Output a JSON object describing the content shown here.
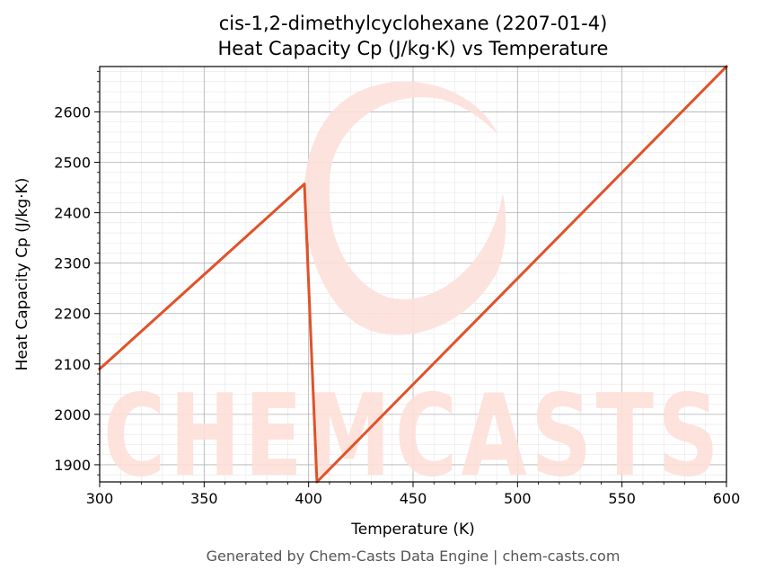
{
  "title_line1": "cis-1,2-dimethylcyclohexane (2207-01-4)",
  "title_line2": "Heat Capacity Cp (J/kg·K) vs Temperature",
  "footer": "Generated by Chem-Casts Data Engine | chem-casts.com",
  "watermark": "CHEMCASTS",
  "colors": {
    "line": "#e0522a",
    "watermark": "#fde0d9",
    "grid_major": "#b0b0b0",
    "grid_minor": "#e6e6e6"
  },
  "chart_data": {
    "type": "line",
    "xlabel": "Temperature (K)",
    "ylabel": "Heat Capacity Cp (J/kg·K)",
    "xlim": [
      300,
      600
    ],
    "ylim": [
      1866,
      2690
    ],
    "x_ticks": [
      300,
      350,
      400,
      450,
      500,
      550,
      600
    ],
    "y_ticks": [
      1900,
      2000,
      2100,
      2200,
      2300,
      2400,
      2500,
      2600
    ],
    "grid": true,
    "series": [
      {
        "x": [
          300,
          398,
          404,
          600
        ],
        "y": [
          2090,
          2457,
          1866,
          2690
        ]
      }
    ]
  }
}
